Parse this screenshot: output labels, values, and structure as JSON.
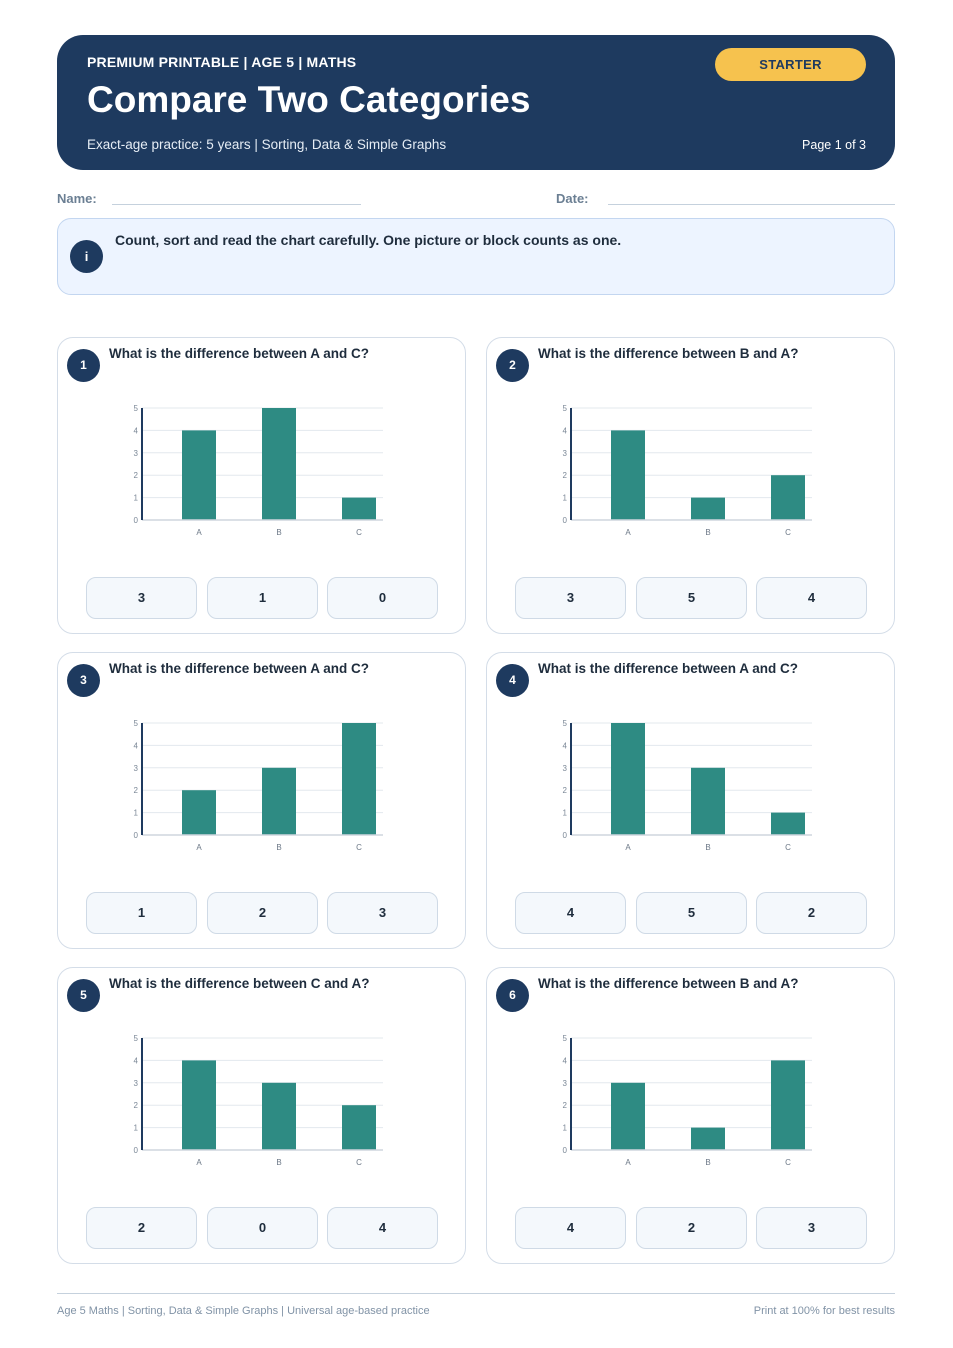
{
  "header": {
    "kicker": "PREMIUM PRINTABLE | AGE 5 | MATHS",
    "title": "Compare Two Categories",
    "subtitle": "Exact-age practice: 5 years | Sorting, Data & Simple Graphs",
    "badge": "STARTER",
    "page": "Page 1 of 3"
  },
  "fields": {
    "name_label": "Name:",
    "date_label": "Date:"
  },
  "info": {
    "icon_glyph": "i",
    "text": "Count, sort and read the chart carefully. One picture or block counts as one."
  },
  "colors": {
    "bar": "#2e8b83",
    "navy": "#1e3a5f",
    "badge": "#f6c24e"
  },
  "questions": [
    {
      "number": "1",
      "question": "What is the difference between A and C?",
      "options": [
        "3",
        "1",
        "0"
      ]
    },
    {
      "number": "2",
      "question": "What is the difference between B and A?",
      "options": [
        "3",
        "5",
        "4"
      ]
    },
    {
      "number": "3",
      "question": "What is the difference between A and C?",
      "options": [
        "1",
        "2",
        "3"
      ]
    },
    {
      "number": "4",
      "question": "What is the difference between A and C?",
      "options": [
        "4",
        "5",
        "2"
      ]
    },
    {
      "number": "5",
      "question": "What is the difference between C and A?",
      "options": [
        "2",
        "0",
        "4"
      ]
    },
    {
      "number": "6",
      "question": "What is the difference between B and A?",
      "options": [
        "4",
        "2",
        "3"
      ]
    }
  ],
  "chart_data": [
    {
      "type": "bar",
      "categories": [
        "A",
        "B",
        "C"
      ],
      "values": [
        4,
        5,
        1
      ],
      "ylim": [
        0,
        5
      ],
      "yticks": [
        "0",
        "1",
        "2",
        "3",
        "4",
        "5"
      ],
      "grid": true
    },
    {
      "type": "bar",
      "categories": [
        "A",
        "B",
        "C"
      ],
      "values": [
        4,
        1,
        2
      ],
      "ylim": [
        0,
        5
      ],
      "yticks": [
        "0",
        "1",
        "2",
        "3",
        "4",
        "5"
      ],
      "grid": true
    },
    {
      "type": "bar",
      "categories": [
        "A",
        "B",
        "C"
      ],
      "values": [
        2,
        3,
        5
      ],
      "ylim": [
        0,
        5
      ],
      "yticks": [
        "0",
        "1",
        "2",
        "3",
        "4",
        "5"
      ],
      "grid": true
    },
    {
      "type": "bar",
      "categories": [
        "A",
        "B",
        "C"
      ],
      "values": [
        5,
        3,
        1
      ],
      "ylim": [
        0,
        5
      ],
      "yticks": [
        "0",
        "1",
        "2",
        "3",
        "4",
        "5"
      ],
      "grid": true
    },
    {
      "type": "bar",
      "categories": [
        "A",
        "B",
        "C"
      ],
      "values": [
        4,
        3,
        2
      ],
      "ylim": [
        0,
        5
      ],
      "yticks": [
        "0",
        "1",
        "2",
        "3",
        "4",
        "5"
      ],
      "grid": true
    },
    {
      "type": "bar",
      "categories": [
        "A",
        "B",
        "C"
      ],
      "values": [
        3,
        1,
        4
      ],
      "ylim": [
        0,
        5
      ],
      "yticks": [
        "0",
        "1",
        "2",
        "3",
        "4",
        "5"
      ],
      "grid": true
    }
  ],
  "footer": {
    "left": "Age 5 Maths | Sorting, Data & Simple Graphs | Universal age-based practice",
    "right": "Print at 100% for best results"
  }
}
